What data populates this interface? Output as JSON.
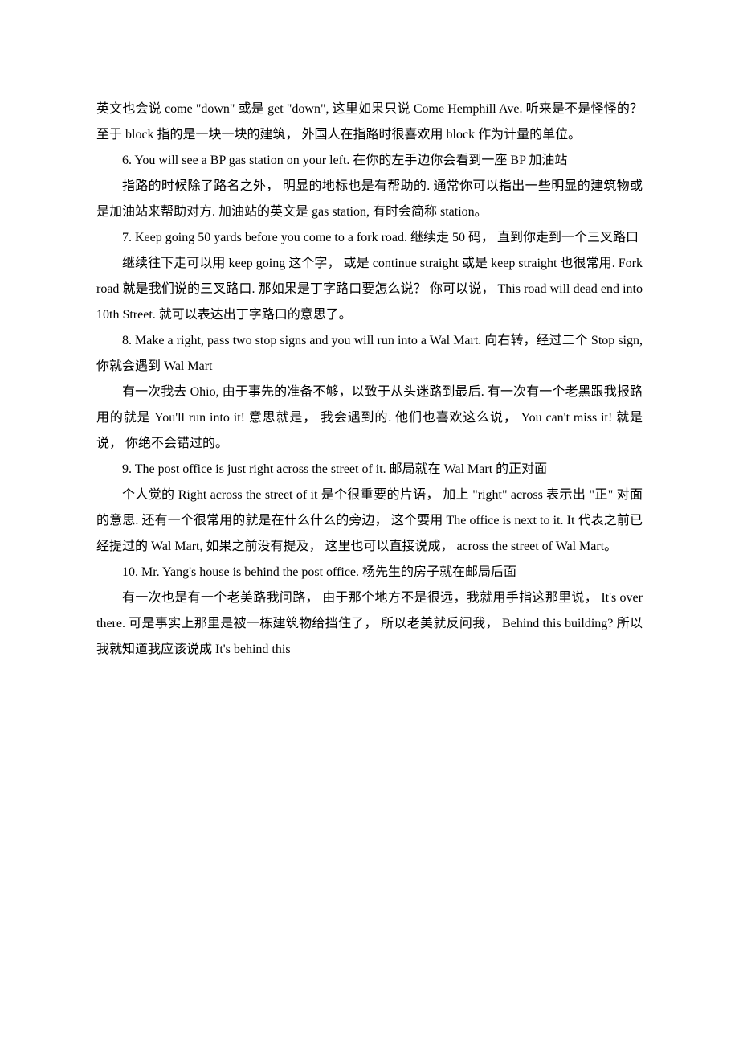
{
  "p1": "英文也会说 come \"down\"  或是  get \"down\",  这里如果只说  Come Hemphill Ave.  听来是不是怪怪的？  至于  block  指的是一块一块的建筑，  外国人在指路时很喜欢用  block  作为计量的单位。",
  "p2": "6. You will see a BP gas station on your left.  在你的左手边你会看到一座  BP  加油站",
  "p3": "指路的时候除了路名之外，  明显的地标也是有帮助的.  通常你可以指出一些明显的建筑物或是加油站来帮助对方.  加油站的英文是  gas station,  有时会简称  station。",
  "p4": "7. Keep going 50 yards before you come to a fork road.  继续走  50  码，  直到你走到一个三叉路口",
  "p5": "继续往下走可以用  keep going  这个字，  或是  continue straight  或是  keep straight  也很常用.  Fork road  就是我们说的三叉路口.  那如果是丁字路口要怎么说？  你可以说，  This road will dead end into 10th Street.  就可以表达出丁字路口的意思了。",
  "p6": "8. Make a right, pass two stop signs and you will run into a Wal Mart.  向右转，经过二个  Stop sign,  你就会遇到  Wal Mart",
  "p7": "有一次我去  Ohio,  由于事先的准备不够，以致于从头迷路到最后.  有一次有一个老黑跟我报路用的就是  You'll run into it!  意思就是，  我会遇到的.  他们也喜欢这么说，  You can't miss it!  就是说，  你绝不会错过的。",
  "p8": "9. The post office is just right across the street of it.  邮局就在  Wal Mart 的正对面",
  "p9": "个人觉的  Right across the street of it  是个很重要的片语，  加上  \"right\" across  表示出  \"正\"  对面的意思.  还有一个很常用的就是在什么什么的旁边，  这个要用  The office is next to it. It  代表之前已经提过的  Wal Mart,  如果之前没有提及，  这里也可以直接说成，  across the street of Wal Mart。",
  "p10": "10. Mr. Yang's house is behind the post office.  杨先生的房子就在邮局后面",
  "p11": "有一次也是有一个老美路我问路，  由于那个地方不是很远，我就用手指这那里说，  It's over there.  可是事实上那里是被一栋建筑物给挡住了，  所以老美就反问我，  Behind this building?  所以我就知道我应该说成  It's behind this"
}
